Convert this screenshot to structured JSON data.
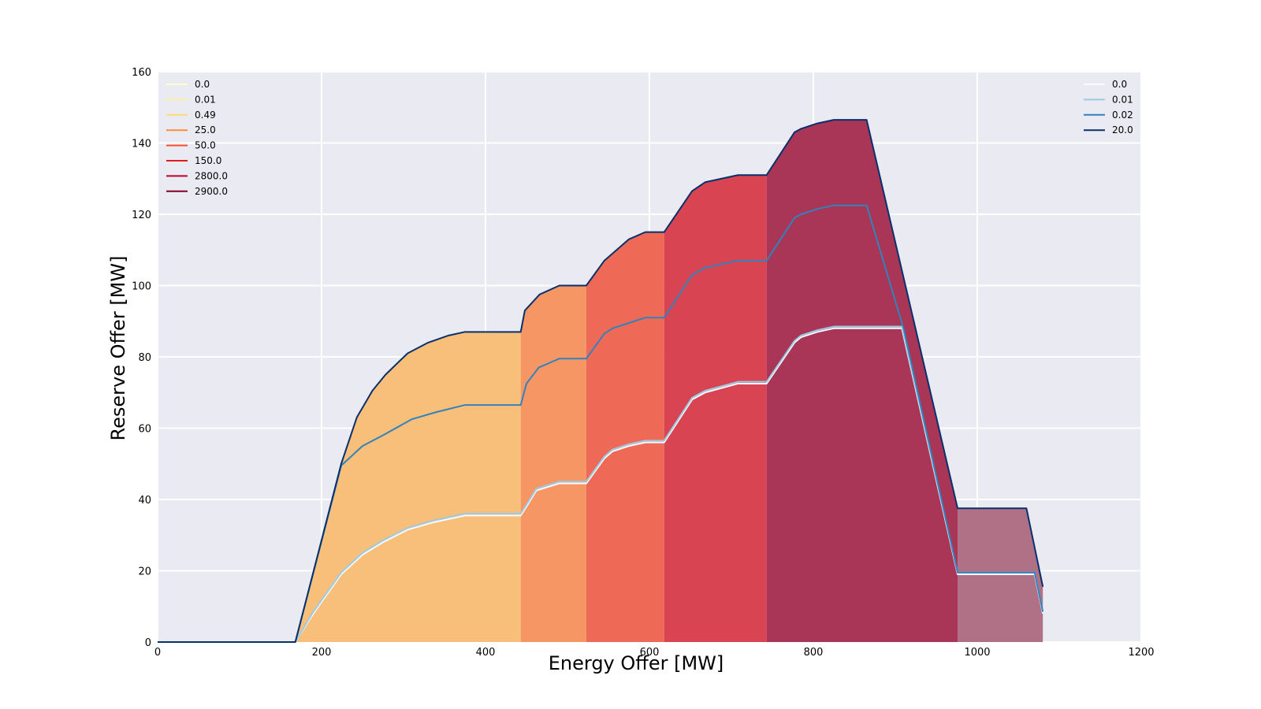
{
  "chart_data": {
    "type": "area",
    "xlabel": "Energy Offer [MW]",
    "ylabel": "Reserve Offer [MW]",
    "xlim": [
      0,
      1200
    ],
    "ylim": [
      0,
      160
    ],
    "xticks": [
      "0",
      "200",
      "400",
      "600",
      "800",
      "1000",
      "1200"
    ],
    "yticks": [
      "0",
      "20",
      "40",
      "60",
      "80",
      "100",
      "120",
      "140",
      "160"
    ],
    "grid": true,
    "background": "#eaeaf2",
    "price_bands": [
      {
        "name": "0.0",
        "color": "#ffffcc",
        "x": [
          0,
          168
        ]
      },
      {
        "name": "0.01",
        "color": "#ffeda0",
        "x": [
          168,
          168
        ]
      },
      {
        "name": "0.49",
        "color": "#f8bf7a",
        "x": [
          168,
          443
        ]
      },
      {
        "name": "25.0",
        "color": "#f69665",
        "x": [
          443,
          523
        ]
      },
      {
        "name": "50.0",
        "color": "#ef6a56",
        "x": [
          523,
          618
        ]
      },
      {
        "name": "150.0",
        "color": "#d84452",
        "x": [
          618,
          743
        ]
      },
      {
        "name": "2800.0",
        "color": "#aa3657",
        "x": [
          743,
          976
        ]
      },
      {
        "name": "2900.0",
        "color": "#b07086",
        "x": [
          976,
          1080
        ]
      }
    ],
    "price_legend": {
      "placement": "top-left",
      "entries": [
        {
          "label": "0.0",
          "color": "#ffffcc"
        },
        {
          "label": "0.01",
          "color": "#ffeda0"
        },
        {
          "label": "0.49",
          "color": "#fed976"
        },
        {
          "label": "25.0",
          "color": "#fd8d3c"
        },
        {
          "label": "50.0",
          "color": "#fc4e2a"
        },
        {
          "label": "150.0",
          "color": "#e31a1c"
        },
        {
          "label": "2800.0",
          "color": "#bd0026"
        },
        {
          "label": "2900.0",
          "color": "#800026"
        }
      ]
    },
    "series": [
      {
        "name": "0.0",
        "color": "#f7fbff",
        "x": [
          0,
          168,
          190,
          224,
          250,
          275,
          305,
          335,
          375,
          443,
          450,
          462,
          490,
          523,
          545,
          555,
          575,
          595,
          618,
          652,
          668,
          708,
          743,
          777,
          785,
          805,
          825,
          908,
          976,
          1070,
          1080
        ],
        "y": [
          0,
          0,
          8,
          19,
          24.5,
          28,
          31.5,
          33.5,
          35.5,
          35.5,
          38,
          42.5,
          44.5,
          44.5,
          51.5,
          53.5,
          55,
          56,
          56,
          68,
          70,
          72.5,
          72.5,
          84,
          85.5,
          87,
          88,
          88,
          19,
          19,
          8
        ]
      },
      {
        "name": "0.01",
        "color": "#9ecae1",
        "x": [
          0,
          168,
          190,
          224,
          250,
          275,
          305,
          335,
          375,
          443,
          450,
          462,
          490,
          523,
          545,
          555,
          575,
          595,
          618,
          652,
          668,
          708,
          743,
          777,
          785,
          805,
          825,
          908,
          976,
          1070,
          1080
        ],
        "y": [
          0,
          0,
          8.5,
          19.5,
          25,
          28.5,
          32,
          34,
          36,
          36,
          38.5,
          43,
          45,
          45,
          52,
          54,
          55.5,
          56.5,
          56.5,
          68.5,
          70.5,
          73,
          73,
          84.5,
          86,
          87.5,
          88.5,
          88.5,
          19.5,
          19.5,
          8.5
        ]
      },
      {
        "name": "0.02",
        "color": "#3182bd",
        "x": [
          0,
          168,
          224,
          250,
          275,
          310,
          340,
          375,
          443,
          450,
          465,
          490,
          523,
          545,
          555,
          575,
          595,
          618,
          652,
          668,
          708,
          743,
          777,
          785,
          805,
          825,
          865,
          910,
          976,
          1070,
          1080
        ],
        "y": [
          0,
          0,
          49.5,
          55,
          58,
          62.5,
          64.5,
          66.5,
          66.5,
          72.5,
          77,
          79.5,
          79.5,
          86.5,
          88,
          89.5,
          91,
          91,
          103,
          105,
          107,
          107,
          119,
          120,
          121.5,
          122.5,
          122.5,
          88,
          19.5,
          19.5,
          8.5
        ]
      },
      {
        "name": "20.0",
        "color": "#08306b",
        "x": [
          0,
          168,
          224,
          243,
          262,
          278,
          305,
          330,
          355,
          375,
          443,
          448,
          466,
          490,
          523,
          545,
          575,
          595,
          618,
          652,
          668,
          708,
          743,
          777,
          785,
          805,
          825,
          865,
          976,
          1060,
          1080
        ],
        "y": [
          0,
          0,
          50,
          63,
          70.5,
          75,
          81,
          84,
          86,
          87,
          87,
          93,
          97.5,
          100,
          100,
          107,
          113,
          115,
          115,
          126.5,
          129,
          131,
          131,
          143,
          144,
          145.5,
          146.5,
          146.5,
          37.5,
          37.5,
          15.5
        ]
      }
    ],
    "series_legend": {
      "placement": "top-right"
    }
  }
}
